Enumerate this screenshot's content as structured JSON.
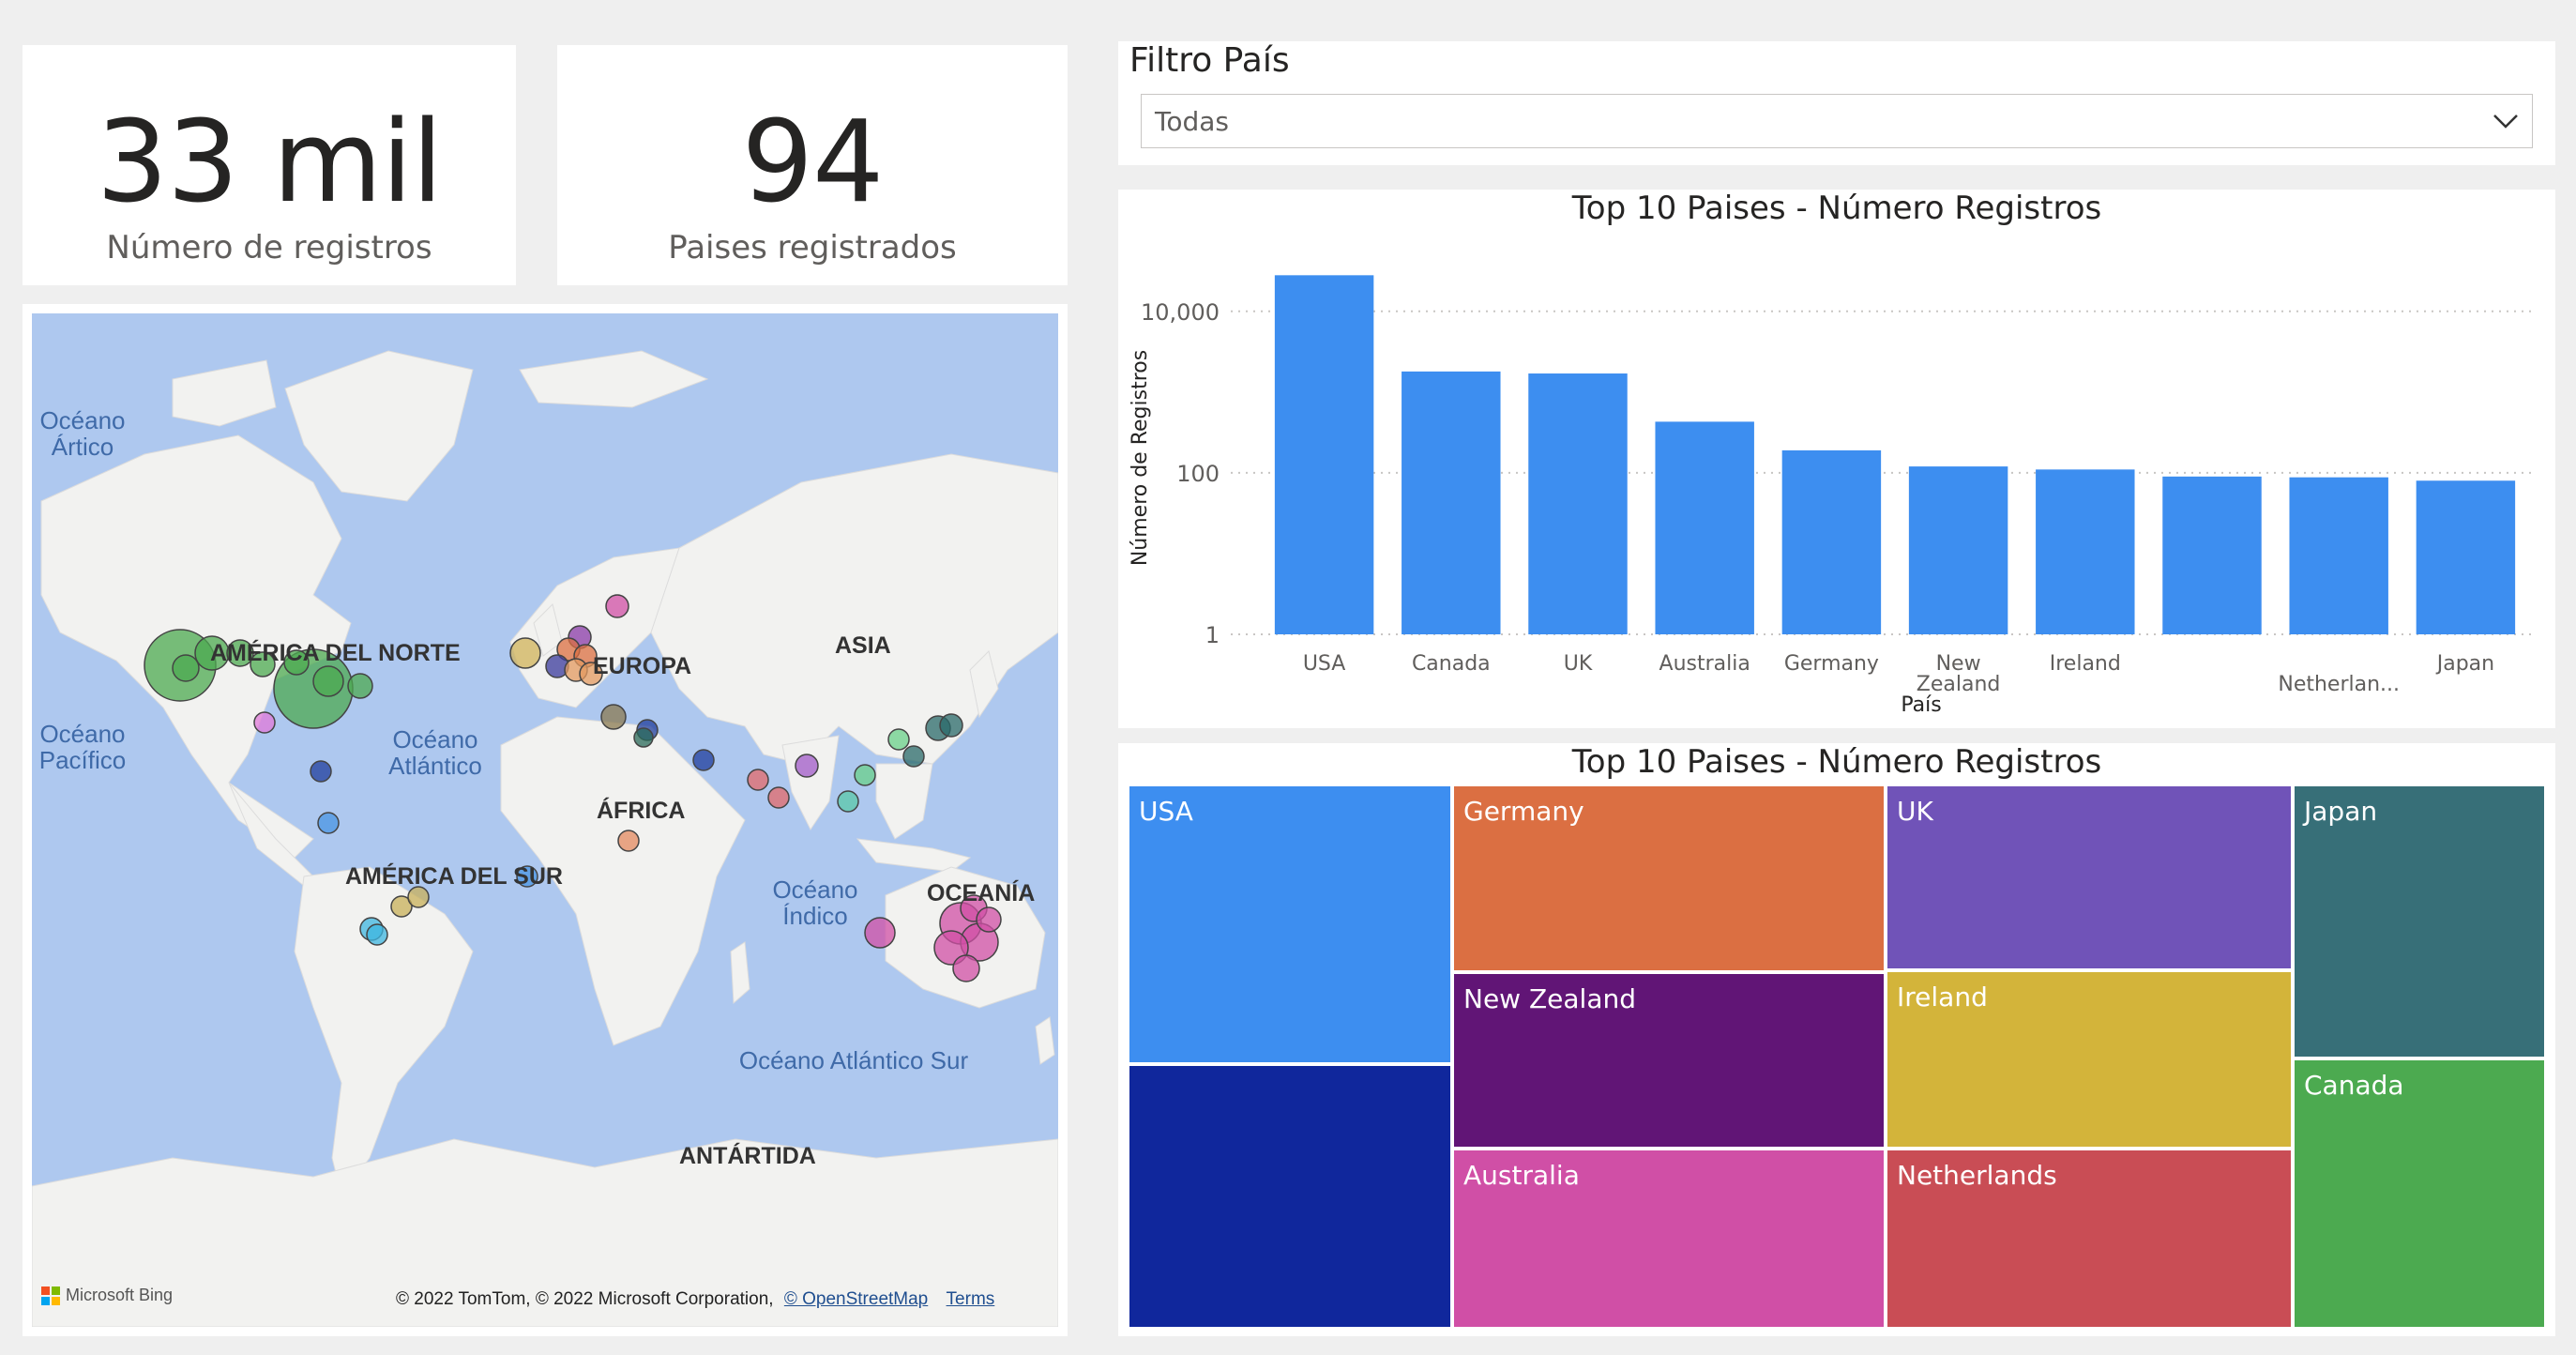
{
  "kpis": {
    "records_value": "33 mil",
    "records_label": "Número de registros",
    "countries_value": "94",
    "countries_label": "Paises registrados"
  },
  "filter": {
    "title": "Filtro País",
    "selected": "Todas"
  },
  "map": {
    "ocean_arctic": "Océano\nÁrtico",
    "ocean_pacific": "Océano\nPacífico",
    "ocean_atlantic": "Océano\nAtlántico",
    "ocean_indian": "Océano\nÍndico",
    "ocean_south_atlantic": "Océano Atlántico Sur",
    "north_america": "AMÉRICA DEL NORTE",
    "europe": "EUROPA",
    "asia": "ASIA",
    "africa": "ÁFRICA",
    "south_america": "AMÉRICA DEL SUR",
    "oceania": "OCEANÍA",
    "antarctica": "ANTÁRTIDA",
    "bing_logo_text": "Microsoft Bing",
    "attribution": "© 2022 TomTom, © 2022 Microsoft Corporation,",
    "osm_link": "© OpenStreetMap",
    "terms_link": "Terms"
  },
  "chart_data": [
    {
      "type": "bar",
      "title": "Top 10 Paises - Número Registros",
      "xlabel": "País",
      "ylabel": "Número de Registros",
      "yscale": "log",
      "ylim": [
        1,
        40000
      ],
      "yticks": [
        "1",
        "100",
        "10,000"
      ],
      "grid": true,
      "color": "#3d8ef0",
      "categories": [
        "USA",
        "Canada",
        "UK",
        "Australia",
        "Germany",
        "New Zealand",
        "Ireland",
        "",
        "Netherlan...",
        "Japan"
      ],
      "values": [
        28000,
        1800,
        1700,
        430,
        190,
        120,
        110,
        90,
        88,
        80
      ]
    },
    {
      "type": "treemap",
      "title": "Top 10 Paises - Número Registros",
      "items": [
        {
          "label": "USA",
          "color": "#3d8ef0"
        },
        {
          "label": "",
          "color": "#10279c"
        },
        {
          "label": "Germany",
          "color": "#db6f42"
        },
        {
          "label": "New Zealand",
          "color": "#611576"
        },
        {
          "label": "Australia",
          "color": "#d04fa6"
        },
        {
          "label": "UK",
          "color": "#7053b8"
        },
        {
          "label": "Ireland",
          "color": "#d3b43a"
        },
        {
          "label": "Netherlands",
          "color": "#c94d55"
        },
        {
          "label": "Japan",
          "color": "#376f78"
        },
        {
          "label": "Canada",
          "color": "#4caa50"
        }
      ]
    }
  ]
}
